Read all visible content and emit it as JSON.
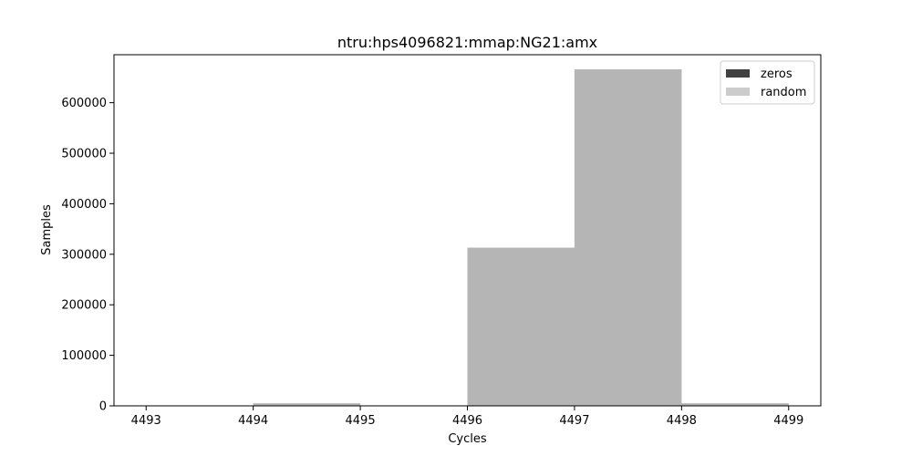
{
  "chart_data": {
    "type": "bar",
    "title": "ntru:hps4096821:mmap:NG21:amx",
    "xlabel": "Cycles",
    "ylabel": "Samples",
    "xlim": [
      4492.7,
      4499.3
    ],
    "ylim": [
      0,
      695000
    ],
    "x_ticks": [
      4493,
      4494,
      4495,
      4496,
      4497,
      4498,
      4499
    ],
    "y_ticks": [
      0,
      100000,
      200000,
      300000,
      400000,
      500000,
      600000
    ],
    "grid": false,
    "legend_position": "top-right",
    "series": [
      {
        "name": "zeros",
        "color": "#404040",
        "bins": [
          {
            "start": 4494,
            "end": 4495,
            "value": 5000
          },
          {
            "start": 4496,
            "end": 4497,
            "value": 313000
          },
          {
            "start": 4497,
            "end": 4498,
            "value": 666000
          },
          {
            "start": 4498,
            "end": 4499,
            "value": 5000
          }
        ]
      },
      {
        "name": "random",
        "color": "#cccccc",
        "bins": [
          {
            "start": 4494,
            "end": 4495,
            "value": 5000
          },
          {
            "start": 4496,
            "end": 4497,
            "value": 313000
          },
          {
            "start": 4497,
            "end": 4498,
            "value": 666000
          },
          {
            "start": 4498,
            "end": 4499,
            "value": 5000
          }
        ]
      }
    ]
  }
}
